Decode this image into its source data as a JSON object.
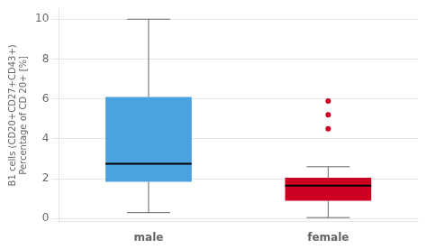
{
  "chart_data": {
    "type": "box",
    "categories": [
      "male",
      "female"
    ],
    "boxes": [
      {
        "whisker_low": 0.3,
        "q1": 1.85,
        "median": 2.75,
        "q3": 6.1,
        "whisker_high": 10.0,
        "outliers": [],
        "color": "#4aa3df"
      },
      {
        "whisker_low": 0.05,
        "q1": 0.9,
        "median": 1.65,
        "q3": 2.05,
        "whisker_high": 2.6,
        "outliers": [
          4.5,
          5.2,
          5.9
        ],
        "color": "#cc0022"
      }
    ],
    "ylabel": [
      "B1 cells (CD20+CD27+CD43+)",
      "Percentage of CD 20+ [%]"
    ],
    "ylim": [
      -0.15,
      10.5
    ],
    "yticks": [
      0,
      2,
      4,
      6,
      8,
      10
    ],
    "grid": true
  }
}
